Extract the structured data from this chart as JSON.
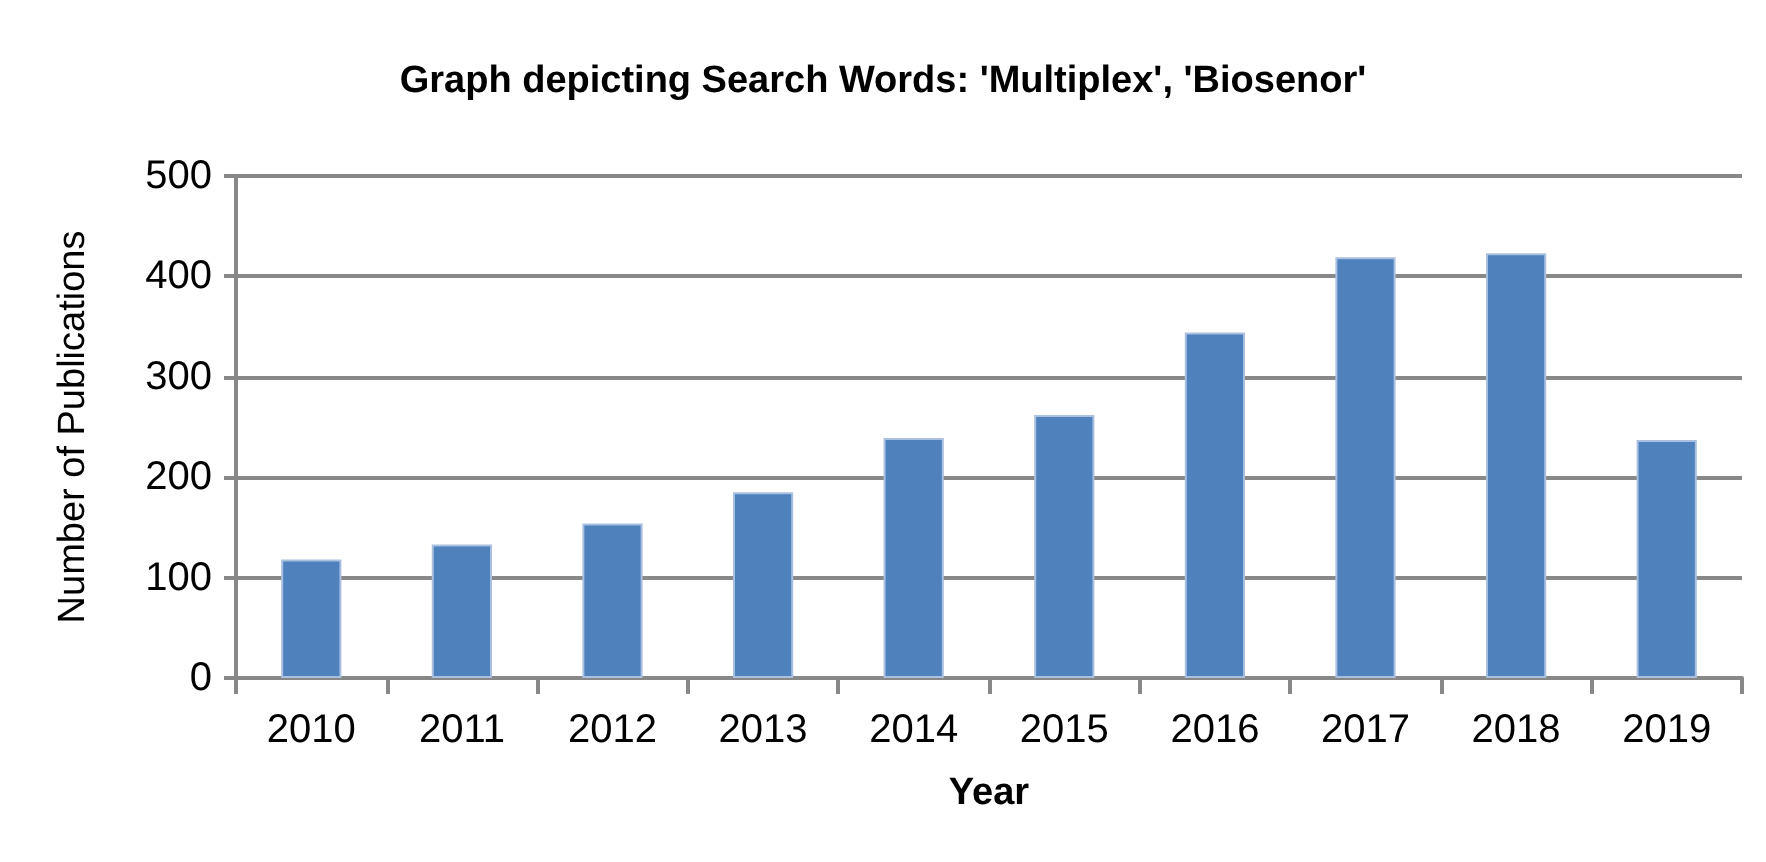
{
  "chart_data": {
    "type": "bar",
    "title": "Graph depicting Search Words: 'Multiplex', 'Biosenor'",
    "xlabel": "Year",
    "ylabel": "Number of Publications",
    "categories": [
      "2010",
      "2011",
      "2012",
      "2013",
      "2014",
      "2015",
      "2016",
      "2017",
      "2018",
      "2019"
    ],
    "values": [
      118,
      133,
      154,
      185,
      239,
      262,
      344,
      419,
      423,
      237
    ],
    "color": "#4f81bd",
    "ylim": [
      0,
      500
    ],
    "yticks": [
      0,
      100,
      200,
      300,
      400,
      500
    ],
    "grid": "y"
  }
}
